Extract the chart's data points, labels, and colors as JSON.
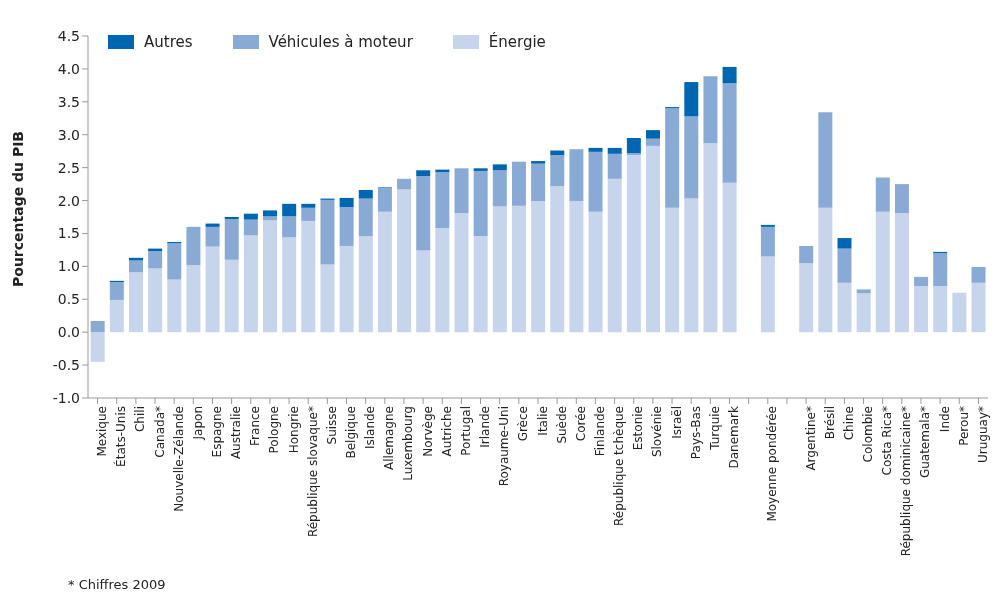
{
  "chart_data": {
    "type": "bar",
    "stacked": true,
    "ylabel": "Pourcentage du PIB",
    "categories": [
      "Mexique",
      "États-Unis",
      "Chili",
      "Canada*",
      "Nouvelle-Zélande",
      "Japon",
      "Espagne",
      "Australie",
      "France",
      "Pologne",
      "Hongrie",
      "République slovaque*",
      "Suisse",
      "Belgique",
      "Islande",
      "Allemagne",
      "Luxembourg",
      "Norvège",
      "Autriche",
      "Portugal",
      "Irlande",
      "Royaume-Uni",
      "Grèce",
      "Italie",
      "Suède",
      "Corée",
      "Finlande",
      "République tchèque",
      "Estonie",
      "Slovénie",
      "Israël",
      "Pays-Bas",
      "Turquie",
      "Danemark",
      null,
      "Moyenne pondérée",
      null,
      "Argentine*",
      "Brésil",
      "Chine",
      "Colombie",
      "Costa Rica*",
      "République dominicaine*",
      "Guatemala*",
      "Inde",
      "Perou*",
      "Uruguay*"
    ],
    "series": [
      {
        "name": "Énergie",
        "color": "#c6d4ec",
        "values": [
          -0.45,
          0.49,
          0.91,
          0.97,
          0.8,
          1.02,
          1.3,
          1.1,
          1.47,
          1.7,
          1.44,
          1.69,
          1.03,
          1.31,
          1.46,
          1.83,
          2.17,
          1.24,
          1.58,
          1.81,
          1.46,
          1.91,
          1.92,
          1.99,
          2.22,
          1.99,
          1.83,
          2.33,
          2.69,
          2.83,
          1.89,
          2.03,
          2.87,
          2.27,
          null,
          1.15,
          null,
          1.05,
          1.89,
          0.75,
          0.59,
          1.83,
          1.81,
          0.7,
          0.7,
          0.6,
          0.75
        ]
      },
      {
        "name": "Véhicules à moteur",
        "color": "#8aaad6",
        "values": [
          0.17,
          0.27,
          0.18,
          0.26,
          0.55,
          0.58,
          0.3,
          0.62,
          0.24,
          0.06,
          0.32,
          0.2,
          0.98,
          0.59,
          0.57,
          0.36,
          0.16,
          1.13,
          0.85,
          0.68,
          0.99,
          0.55,
          0.67,
          0.57,
          0.47,
          0.79,
          0.91,
          0.38,
          0.03,
          0.11,
          1.51,
          1.25,
          1.02,
          1.51,
          null,
          0.45,
          null,
          0.26,
          1.45,
          0.52,
          0.06,
          0.52,
          0.44,
          0.14,
          0.5,
          0,
          0.24
        ]
      },
      {
        "name": "Autres",
        "color": "#0066b3",
        "values": [
          0,
          0.02,
          0.04,
          0.04,
          0.02,
          0,
          0.05,
          0.03,
          0.09,
          0.09,
          0.19,
          0.06,
          0.02,
          0.14,
          0.13,
          0.01,
          0,
          0.09,
          0.04,
          0,
          0.04,
          0.09,
          0,
          0.04,
          0.07,
          0,
          0.06,
          0.09,
          0.23,
          0.13,
          0.02,
          0.52,
          0,
          0.25,
          null,
          0.03,
          null,
          0,
          0,
          0.16,
          0,
          0,
          0,
          0,
          0.02,
          0,
          0
        ]
      }
    ],
    "ylim": [
      -1,
      4.5
    ],
    "yticks": [
      {
        "value": -1,
        "label": "-1.0"
      },
      {
        "value": -0.5,
        "label": "-0.5"
      },
      {
        "value": 0,
        "label": "0.0"
      },
      {
        "value": 0.5,
        "label": "0.5"
      },
      {
        "value": 1,
        "label": "1.0"
      },
      {
        "value": 1.5,
        "label": "1.5"
      },
      {
        "value": 2,
        "label": "2.0"
      },
      {
        "value": 2.5,
        "label": "2.5"
      },
      {
        "value": 3,
        "label": "3.0"
      },
      {
        "value": 3.5,
        "label": "3.5"
      },
      {
        "value": 4,
        "label": "4.0"
      },
      {
        "value": 4.5,
        "label": "4.5"
      }
    ],
    "grid": false,
    "legend": "top left",
    "annotations": [
      "* Chiffres 2009"
    ]
  }
}
